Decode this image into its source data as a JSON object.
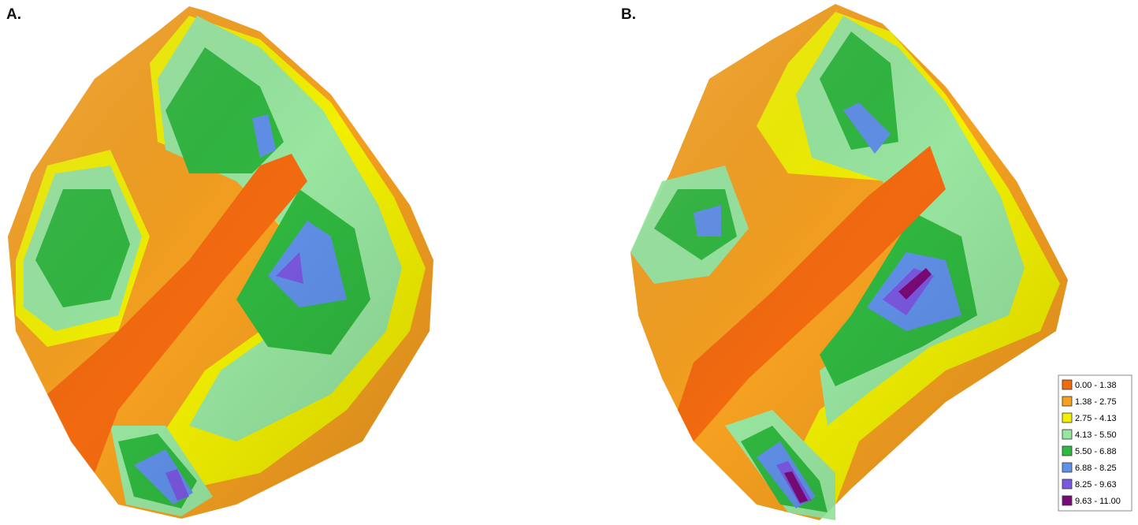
{
  "panels": [
    {
      "label": "A."
    },
    {
      "label": "B."
    }
  ],
  "legend": {
    "items": [
      {
        "label": "0.00 - 1.38",
        "color": "#f26a10"
      },
      {
        "label": "1.38 - 2.75",
        "color": "#f5a020"
      },
      {
        "label": "2.75 - 4.13",
        "color": "#f2f000"
      },
      {
        "label": "4.13 - 5.50",
        "color": "#98e6a0"
      },
      {
        "label": "5.50 - 6.88",
        "color": "#30b840"
      },
      {
        "label": "6.88 - 8.25",
        "color": "#6090e8"
      },
      {
        "label": "8.25 - 9.63",
        "color": "#7a58e0"
      },
      {
        "label": "9.63 - 11.00",
        "color": "#7a0a78"
      }
    ]
  }
}
